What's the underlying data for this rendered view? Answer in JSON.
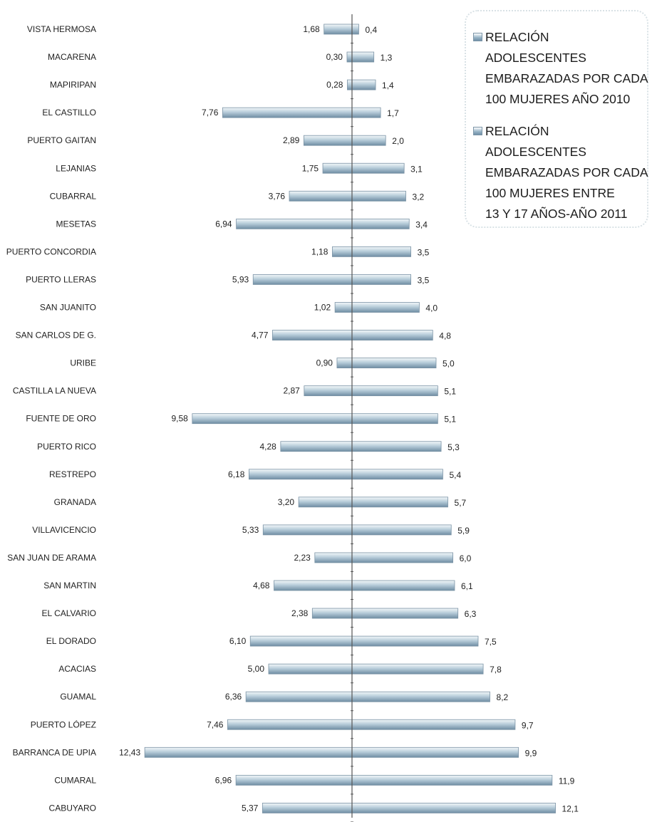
{
  "chart_data": {
    "type": "bar",
    "orientation": "horizontal-diverging",
    "categories": [
      "VISTA HERMOSA",
      "MACARENA",
      "MAPIRIPAN",
      "EL CASTILLO",
      "PUERTO GAITAN",
      "LEJANIAS",
      "CUBARRAL",
      "MESETAS",
      "PUERTO CONCORDIA",
      "PUERTO LLERAS",
      "SAN JUANITO",
      "SAN CARLOS DE G.",
      "URIBE",
      "CASTILLA LA NUEVA",
      "FUENTE DE ORO",
      "PUERTO RICO",
      "RESTREPO",
      "GRANADA",
      "VILLAVICENCIO",
      "SAN JUAN DE ARAMA",
      "SAN MARTIN",
      "EL CALVARIO",
      "EL DORADO",
      "ACACIAS",
      "GUAMAL",
      "PUERTO LÓPEZ",
      "BARRANCA DE UPIA",
      "CUMARAL",
      "CABUYARO"
    ],
    "series": [
      {
        "name": "RELACIÓN ADOLESCENTES EMBARAZADAS POR CADA 100 MUJERES AÑO 2010",
        "side": "left",
        "values": [
          1.68,
          0.3,
          0.28,
          7.76,
          2.89,
          1.75,
          3.76,
          6.94,
          1.18,
          5.93,
          1.02,
          4.77,
          0.9,
          2.87,
          9.58,
          4.28,
          6.18,
          3.2,
          5.33,
          2.23,
          4.68,
          2.38,
          6.1,
          5.0,
          6.36,
          7.46,
          12.43,
          6.96,
          5.37
        ],
        "labels": [
          "1,68",
          "0,30",
          "0,28",
          "7,76",
          "2,89",
          "1,75",
          "3,76",
          "6,94",
          "1,18",
          "5,93",
          "1,02",
          "4,77",
          "0,90",
          "2,87",
          "9,58",
          "4,28",
          "6,18",
          "3,20",
          "5,33",
          "2,23",
          "4,68",
          "2,38",
          "6,10",
          "5,00",
          "6,36",
          "7,46",
          "12,43",
          "6,96",
          "5,37"
        ]
      },
      {
        "name": "RELACIÓN ADOLESCENTES EMBARAZADAS POR CADA 100 MUJERES ENTRE 13 Y 17 AÑOS-AÑO 2011",
        "side": "right",
        "values": [
          0.4,
          1.3,
          1.4,
          1.7,
          2.0,
          3.1,
          3.2,
          3.4,
          3.5,
          3.5,
          4.0,
          4.8,
          5.0,
          5.1,
          5.1,
          5.3,
          5.4,
          5.7,
          5.9,
          6.0,
          6.1,
          6.3,
          7.5,
          7.8,
          8.2,
          9.7,
          9.9,
          11.9,
          12.1
        ],
        "labels": [
          "0,4",
          "1,3",
          "1,4",
          "1,7",
          "2,0",
          "3,1",
          "3,2",
          "3,4",
          "3,5",
          "3,5",
          "4,0",
          "4,8",
          "5,0",
          "5,1",
          "5,1",
          "5,3",
          "5,4",
          "5,7",
          "5,9",
          "6,0",
          "6,1",
          "6,3",
          "7,5",
          "7,8",
          "8,2",
          "9,7",
          "9,9",
          "11,9",
          "12,1"
        ]
      }
    ],
    "legend_position": "top-right",
    "grid": false,
    "colors": {
      "bar_light": "#f2f6f8",
      "bar_mid": "#a9c1d1",
      "bar_dark": "#6e8ca2",
      "bar_edge": "#7b93a5",
      "axis": "#555555"
    }
  },
  "legend": {
    "item1": "RELACIÓN ADOLESCENTES\nEMBARAZADAS POR CADA\n100 MUJERES AÑO 2010",
    "item2": "RELACIÓN ADOLESCENTES\nEMBARAZADAS POR CADA\n100 MUJERES ENTRE\n13 Y 17 AÑOS-AÑO 2011"
  }
}
